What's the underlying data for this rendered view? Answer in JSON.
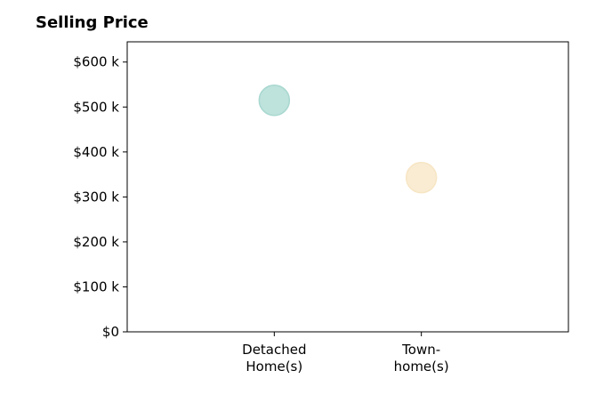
{
  "chart_data": {
    "type": "scatter",
    "title": "Selling Price",
    "xlabel": "",
    "ylabel": "",
    "categories": [
      [
        "Detached",
        "Home(s)"
      ],
      [
        "Town-",
        "home(s)"
      ]
    ],
    "y_ticks": [
      {
        "value": 0,
        "label": "$0"
      },
      {
        "value": 100000,
        "label": "$100 k"
      },
      {
        "value": 200000,
        "label": "$200 k"
      },
      {
        "value": 300000,
        "label": "$300 k"
      },
      {
        "value": 400000,
        "label": "$400 k"
      },
      {
        "value": 500000,
        "label": "$500 k"
      },
      {
        "value": 600000,
        "label": "$600 k"
      }
    ],
    "ylim": [
      0,
      645000
    ],
    "xlim": [
      -1,
      2
    ],
    "grid": false,
    "legend": "none",
    "points": [
      {
        "category": "Detached Home(s)",
        "x": 0,
        "y": 515000,
        "color": "#a8d8d0"
      },
      {
        "category": "Town-home(s)",
        "x": 1,
        "y": 343000,
        "color": "#f7e6c4"
      }
    ]
  }
}
